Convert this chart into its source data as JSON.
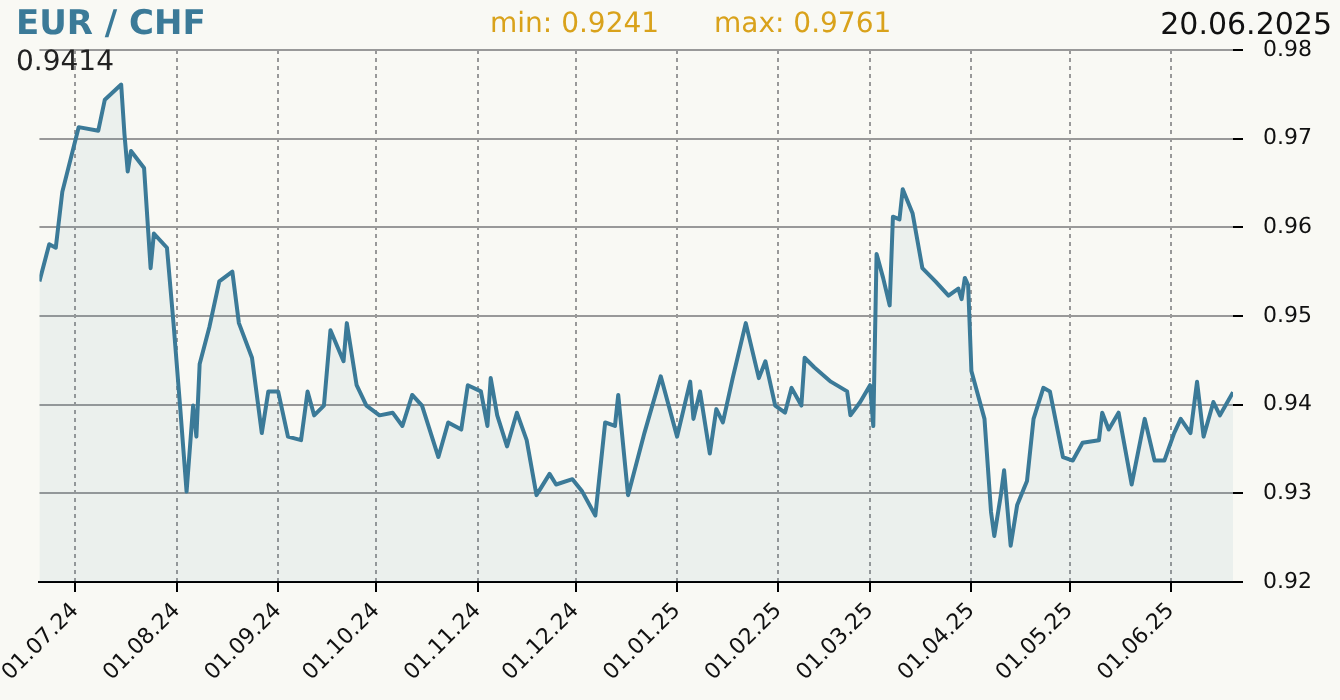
{
  "chart_data": {
    "type": "area",
    "title": "EUR / CHF",
    "annotations": [
      "min: 0.9241",
      "max: 0.9761",
      "20.06.2025",
      "0.9414"
    ],
    "x": [
      "2024-06-20",
      "2024-06-23",
      "2024-06-25",
      "2024-06-27",
      "2024-07-02",
      "2024-07-08",
      "2024-07-10",
      "2024-07-15",
      "2024-07-16",
      "2024-07-17",
      "2024-07-18",
      "2024-07-22",
      "2024-07-24",
      "2024-07-25",
      "2024-07-29",
      "2024-07-31",
      "2024-08-02",
      "2024-08-04",
      "2024-08-06",
      "2024-08-07",
      "2024-08-08",
      "2024-08-11",
      "2024-08-14",
      "2024-08-18",
      "2024-08-20",
      "2024-08-24",
      "2024-08-27",
      "2024-08-29",
      "2024-09-01",
      "2024-09-04",
      "2024-09-08",
      "2024-09-10",
      "2024-09-12",
      "2024-09-15",
      "2024-09-17",
      "2024-09-21",
      "2024-09-22",
      "2024-09-25",
      "2024-09-28",
      "2024-10-02",
      "2024-10-06",
      "2024-10-09",
      "2024-10-12",
      "2024-10-15",
      "2024-10-20",
      "2024-10-23",
      "2024-10-27",
      "2024-10-29",
      "2024-11-02",
      "2024-11-04",
      "2024-11-05",
      "2024-11-07",
      "2024-11-10",
      "2024-11-13",
      "2024-11-16",
      "2024-11-19",
      "2024-11-23",
      "2024-11-25",
      "2024-11-30",
      "2024-12-03",
      "2024-12-07",
      "2024-12-10",
      "2024-12-13",
      "2024-12-14",
      "2024-12-17",
      "2024-12-22",
      "2024-12-27",
      "2025-01-01",
      "2025-01-05",
      "2025-01-06",
      "2025-01-08",
      "2025-01-11",
      "2025-01-13",
      "2025-01-15",
      "2025-01-18",
      "2025-01-22",
      "2025-01-26",
      "2025-01-28",
      "2025-01-31",
      "2025-02-03",
      "2025-02-05",
      "2025-02-08",
      "2025-02-09",
      "2025-02-12",
      "2025-02-17",
      "2025-02-22",
      "2025-02-23",
      "2025-02-26",
      "2025-03-01",
      "2025-03-02",
      "2025-03-03",
      "2025-03-05",
      "2025-03-07",
      "2025-03-08",
      "2025-03-10",
      "2025-03-11",
      "2025-03-14",
      "2025-03-17",
      "2025-03-21",
      "2025-03-25",
      "2025-03-28",
      "2025-03-29",
      "2025-03-30",
      "2025-03-31",
      "2025-04-01",
      "2025-04-05",
      "2025-04-07",
      "2025-04-08",
      "2025-04-10",
      "2025-04-11",
      "2025-04-13",
      "2025-04-15",
      "2025-04-18",
      "2025-04-20",
      "2025-04-23",
      "2025-04-25",
      "2025-04-29",
      "2025-05-02",
      "2025-05-05",
      "2025-05-10",
      "2025-05-11",
      "2025-05-13",
      "2025-05-16",
      "2025-05-20",
      "2025-05-24",
      "2025-05-27",
      "2025-05-30",
      "2025-06-02",
      "2025-06-04",
      "2025-06-07",
      "2025-06-09",
      "2025-06-11",
      "2025-06-14",
      "2025-06-16",
      "2025-06-20"
    ],
    "series": [
      {
        "color": "#3b7a98",
        "values": [
          0.9539,
          0.9581,
          0.9577,
          0.964,
          0.9713,
          0.9709,
          0.9744,
          0.9761,
          0.9705,
          0.9663,
          0.9686,
          0.9667,
          0.9554,
          0.9593,
          0.9577,
          0.9492,
          0.9399,
          0.9302,
          0.9399,
          0.9364,
          0.9446,
          0.9488,
          0.9539,
          0.955,
          0.9492,
          0.9453,
          0.9368,
          0.9415,
          0.9415,
          0.9364,
          0.936,
          0.9415,
          0.9388,
          0.9399,
          0.9484,
          0.9449,
          0.9492,
          0.9422,
          0.9399,
          0.9388,
          0.9391,
          0.9376,
          0.9411,
          0.9399,
          0.9341,
          0.938,
          0.9372,
          0.9422,
          0.9415,
          0.9376,
          0.943,
          0.9388,
          0.9353,
          0.9391,
          0.936,
          0.9298,
          0.9322,
          0.931,
          0.9316,
          0.9302,
          0.9275,
          0.938,
          0.9376,
          0.9411,
          0.9298,
          0.9368,
          0.9432,
          0.9364,
          0.9426,
          0.9384,
          0.9415,
          0.9345,
          0.9395,
          0.938,
          0.943,
          0.9492,
          0.943,
          0.9449,
          0.9399,
          0.9391,
          0.9419,
          0.9399,
          0.9453,
          0.9442,
          0.9426,
          0.9415,
          0.9388,
          0.9403,
          0.9422,
          0.9376,
          0.957,
          0.9543,
          0.9512,
          0.9612,
          0.9609,
          0.9643,
          0.9616,
          0.9554,
          0.9539,
          0.9523,
          0.9531,
          0.9519,
          0.9543,
          0.9535,
          0.9438,
          0.9384,
          0.9279,
          0.9252,
          0.9298,
          0.9326,
          0.9241,
          0.9287,
          0.9314,
          0.9384,
          0.9419,
          0.9415,
          0.9341,
          0.9337,
          0.9357,
          0.936,
          0.9391,
          0.9372,
          0.9391,
          0.931,
          0.9384,
          0.9337,
          0.9337,
          0.9368,
          0.9384,
          0.9368,
          0.9426,
          0.9364,
          0.9403,
          0.9388,
          0.9414
        ]
      }
    ],
    "xlim": [
      "2024-06-20",
      "2025-06-20"
    ],
    "xticks": [
      {
        "value": "2024-07-01",
        "label": "01.07.24"
      },
      {
        "value": "2024-08-01",
        "label": "01.08.24"
      },
      {
        "value": "2024-09-01",
        "label": "01.09.24"
      },
      {
        "value": "2024-10-01",
        "label": "01.10.24"
      },
      {
        "value": "2024-11-01",
        "label": "01.11.24"
      },
      {
        "value": "2024-12-01",
        "label": "01.12.24"
      },
      {
        "value": "2025-01-01",
        "label": "01.01.25"
      },
      {
        "value": "2025-02-01",
        "label": "01.02.25"
      },
      {
        "value": "2025-03-01",
        "label": "01.03.25"
      },
      {
        "value": "2025-04-01",
        "label": "01.04.25"
      },
      {
        "value": "2025-05-01",
        "label": "01.05.25"
      },
      {
        "value": "2025-06-01",
        "label": "01.06.25"
      }
    ],
    "ylim": [
      0.92,
      0.98
    ],
    "yticks": [
      0.92,
      0.93,
      0.94,
      0.95,
      0.96,
      0.97,
      0.98
    ],
    "grid": true,
    "marker": "none",
    "line_style": "solid"
  }
}
